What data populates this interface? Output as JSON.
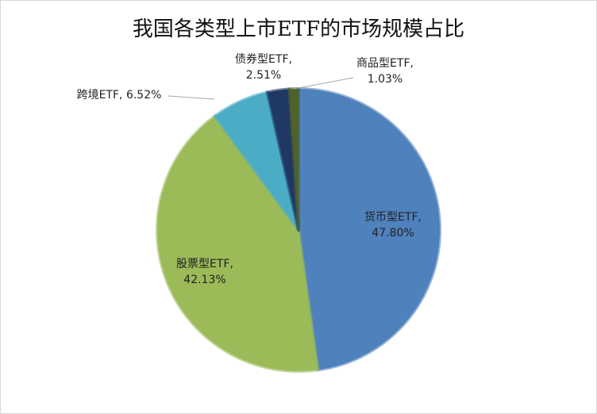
{
  "chart_data": {
    "type": "pie",
    "title": "我国各类型上市ETF的市场规模占比",
    "categories": [
      "货币型ETF",
      "股票型ETF",
      "跨境ETF",
      "债券型ETF",
      "商品型ETF"
    ],
    "values": [
      47.8,
      42.13,
      6.52,
      2.51,
      1.03
    ],
    "value_labels": [
      "47.80%",
      "42.13%",
      "6.52%",
      "2.51%",
      "1.03%"
    ],
    "colors": [
      "#4f81bd",
      "#9bbb59",
      "#4bacc6",
      "#1f3864",
      "#4f6228"
    ]
  }
}
